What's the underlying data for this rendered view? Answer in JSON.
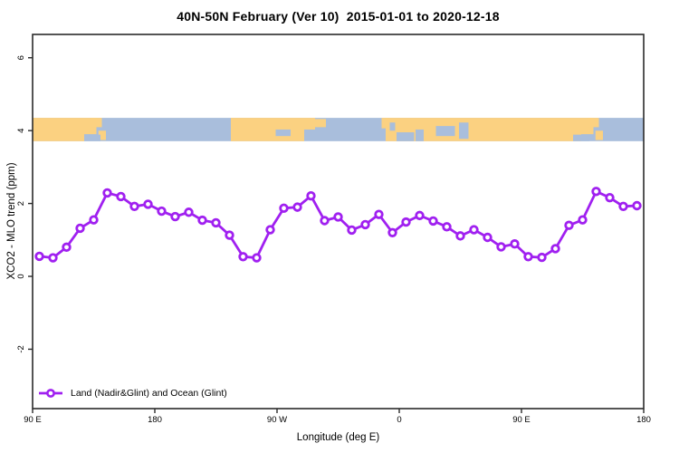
{
  "title": "40N-50N February (Ver 10)  2015-01-01 to 2020-12-18",
  "legend": {
    "label": "Land (Nadir&Glint) and Ocean (Glint)"
  },
  "axes": {
    "x_label": "Longitude (deg E)",
    "y_label": "XCO2 - MLO trend (ppm)"
  },
  "colors": {
    "line": "#A020F0",
    "marker_fill": "#FFFFFF",
    "frame": "#2B2B2B",
    "text": "#000000",
    "land": "#FBD181",
    "ocean": "#A9BEDC"
  },
  "chart_data": {
    "type": "line",
    "title": "40N-50N February (Ver 10)  2015-01-01 to 2020-12-18",
    "xlabel": "Longitude (deg E)",
    "ylabel": "XCO2 - MLO trend (ppm)",
    "xlim": [
      90,
      540
    ],
    "ylim": [
      -3.63,
      6.64
    ],
    "grid": false,
    "legend_position": "bottom-left",
    "x_ticks": [
      {
        "lon": 90,
        "label": "90 E"
      },
      {
        "lon": 180,
        "label": "180"
      },
      {
        "lon": 270,
        "label": "90 W"
      },
      {
        "lon": 360,
        "label": "0"
      },
      {
        "lon": 450,
        "label": "90 E"
      },
      {
        "lon": 540,
        "label": "180"
      }
    ],
    "y_ticks": [
      {
        "v": -2,
        "label": "-2"
      },
      {
        "v": 0,
        "label": "0"
      },
      {
        "v": 2,
        "label": "2"
      },
      {
        "v": 4,
        "label": "4"
      },
      {
        "v": 6,
        "label": "6"
      }
    ],
    "series": [
      {
        "name": "Land (Nadir&Glint) and Ocean (Glint)",
        "marker": "open-circle",
        "x": [
          95,
          105,
          115,
          125,
          135,
          145,
          155,
          165,
          175,
          185,
          195,
          205,
          215,
          225,
          235,
          245,
          255,
          265,
          275,
          285,
          295,
          305,
          315,
          325,
          335,
          345,
          355,
          365,
          375,
          385,
          395,
          405,
          415,
          425,
          435,
          445,
          455,
          465,
          475,
          485,
          495,
          505,
          515,
          525,
          535
        ],
        "values": [
          0.55,
          0.51,
          0.8,
          1.32,
          1.55,
          2.29,
          2.19,
          1.92,
          1.98,
          1.79,
          1.64,
          1.76,
          1.54,
          1.47,
          1.13,
          0.54,
          0.51,
          1.28,
          1.87,
          1.9,
          2.21,
          1.53,
          1.63,
          1.27,
          1.42,
          1.7,
          1.2,
          1.49,
          1.67,
          1.52,
          1.36,
          1.11,
          1.28,
          1.07,
          0.81,
          0.89,
          0.54,
          0.52,
          0.76,
          1.4,
          1.55,
          2.33,
          2.16,
          1.92,
          1.94
        ]
      }
    ],
    "map_band": {
      "description": "world-map latitude strip 40N-50N drawn across plot at ~4 ppm",
      "y_range_ppm": [
        3.71,
        4.35
      ],
      "land_segments": [
        [
          90,
          128,
          0,
          1
        ],
        [
          128,
          137,
          0,
          0.7
        ],
        [
          133,
          141,
          0,
          0.4
        ],
        [
          138.5,
          144,
          0.55,
          0.95
        ],
        [
          236,
          290,
          0,
          1
        ],
        [
          290,
          298,
          0,
          0.5
        ],
        [
          296,
          306,
          0.05,
          0.4
        ],
        [
          347,
          352,
          0,
          0.45
        ],
        [
          350,
          450,
          0,
          1
        ],
        [
          450,
          494,
          0,
          1
        ],
        [
          494,
          503,
          0,
          0.7
        ],
        [
          499,
          507,
          0,
          0.4
        ],
        [
          504.5,
          510,
          0.55,
          0.95
        ]
      ],
      "water_overlays": [
        [
          128,
          140,
          0.72,
          1
        ],
        [
          269,
          280,
          0.5,
          0.78
        ],
        [
          353,
          357,
          0.2,
          0.55
        ],
        [
          358,
          371,
          0.62,
          1
        ],
        [
          372,
          378,
          0.5,
          1
        ],
        [
          387,
          401,
          0.35,
          0.78
        ],
        [
          404,
          411,
          0.2,
          0.9
        ],
        [
          488,
          500,
          0.72,
          1
        ]
      ]
    }
  }
}
